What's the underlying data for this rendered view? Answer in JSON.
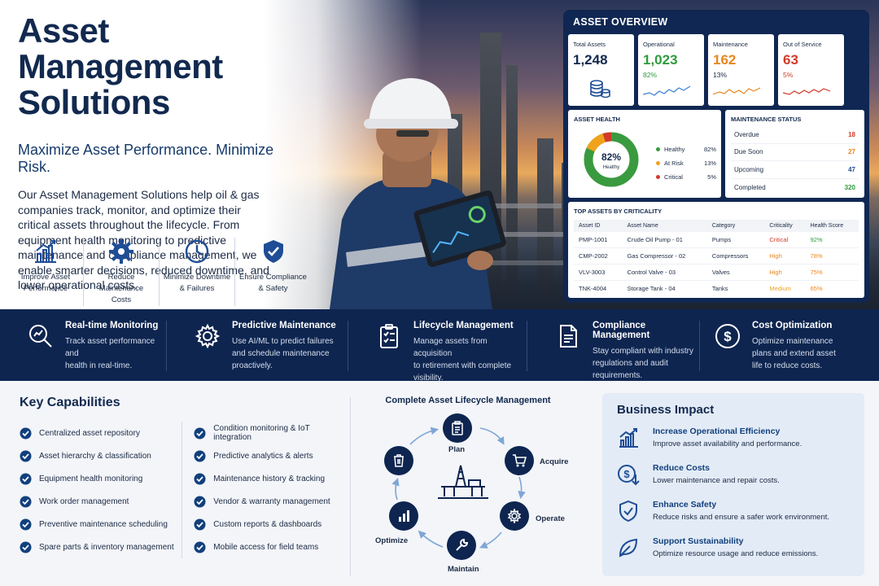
{
  "hero": {
    "title_line1": "Asset Management",
    "title_line2": "Solutions",
    "subtitle": "Maximize Asset Performance. Minimize Risk.",
    "description": "Our Asset Management Solutions help oil & gas companies track, monitor, and optimize their critical assets throughout the lifecycle. From equipment health monitoring to predictive maintenance and compliance management, we enable smarter decisions, reduced downtime, and lower operational costs.",
    "features": [
      {
        "icon": "chart-bar-icon",
        "line1": "Improve Asset",
        "line2": "Performance"
      },
      {
        "icon": "gear-icon",
        "line1": "Reduce Maintenance",
        "line2": "Costs"
      },
      {
        "icon": "clock-icon",
        "line1": "Minimize Downtime",
        "line2": "& Failures"
      },
      {
        "icon": "shield-check-icon",
        "line1": "Ensure Compliance",
        "line2": "& Safety"
      }
    ]
  },
  "dashboard": {
    "title": "ASSET OVERVIEW",
    "kpis": [
      {
        "label": "Total Assets",
        "value": "1,248",
        "pct": "",
        "color": "#12294f"
      },
      {
        "label": "Operational",
        "value": "1,023",
        "pct": "82%",
        "color": "#2e9b3c"
      },
      {
        "label": "Maintenance",
        "value": "162",
        "pct": "13%",
        "color": "#e8861e"
      },
      {
        "label": "Out of Service",
        "value": "63",
        "pct": "5%",
        "color": "#d23a2a"
      }
    ],
    "health": {
      "title": "ASSET HEALTH",
      "center_value": "82%",
      "center_label": "Healthy",
      "items": [
        {
          "name": "Healthy",
          "value": "82%",
          "color": "#3a9a3f"
        },
        {
          "name": "At Risk",
          "value": "13%",
          "color": "#f0a21d"
        },
        {
          "name": "Critical",
          "value": "5%",
          "color": "#d23a2a"
        }
      ]
    },
    "maintenance": {
      "title": "MAINTENANCE STATUS",
      "rows": [
        {
          "label": "Overdue",
          "value": "18",
          "color": "#d23a2a"
        },
        {
          "label": "Due Soon",
          "value": "27",
          "color": "#e8861e"
        },
        {
          "label": "Upcoming",
          "value": "47",
          "color": "#1f4d96"
        },
        {
          "label": "Completed",
          "value": "320",
          "color": "#2e9b3c"
        }
      ]
    },
    "top_assets": {
      "title": "TOP ASSETS BY CRITICALITY",
      "headers": [
        "Asset ID",
        "Asset Name",
        "Category",
        "Criticality",
        "Health Score"
      ],
      "rows": [
        [
          "PMP-1001",
          "Crude Oil Pump - 01",
          "Pumps",
          "Critical",
          "92%"
        ],
        [
          "CMP-2002",
          "Gas Compressor - 02",
          "Compressors",
          "High",
          "78%"
        ],
        [
          "VLV-3003",
          "Control Valve - 03",
          "Valves",
          "High",
          "75%"
        ],
        [
          "TNK-4004",
          "Storage Tank - 04",
          "Tanks",
          "Medium",
          "65%"
        ]
      ]
    }
  },
  "band": [
    {
      "icon": "magnifier-chart-icon",
      "title": "Real-time Monitoring",
      "line1": "Track asset performance and",
      "line2": "health in real-time.",
      "line3": ""
    },
    {
      "icon": "gear-icon",
      "title": "Predictive Maintenance",
      "line1": "Use AI/ML to predict failures",
      "line2": "and schedule maintenance",
      "line3": "proactively."
    },
    {
      "icon": "clipboard-checklist-icon",
      "title": "Lifecycle Management",
      "line1": "Manage assets from acquisition",
      "line2": "to retirement with complete",
      "line3": "visibility."
    },
    {
      "icon": "document-icon",
      "title": "Compliance Management",
      "line1": "Stay compliant with industry",
      "line2": "regulations and audit",
      "line3": "requirements."
    },
    {
      "icon": "dollar-circle-icon",
      "title": "Cost Optimization",
      "line1": "Optimize maintenance",
      "line2": "plans and extend asset",
      "line3": "life to reduce costs."
    }
  ],
  "capabilities": {
    "title": "Key Capabilities",
    "col1": [
      "Centralized asset repository",
      "Asset hierarchy & classification",
      "Equipment health monitoring",
      "Work order management",
      "Preventive maintenance scheduling",
      "Spare parts & inventory management"
    ],
    "col2": [
      "Condition monitoring & IoT integration",
      "Predictive analytics & alerts",
      "Maintenance history & tracking",
      "Vendor & warranty management",
      "Custom reports & dashboards",
      "Mobile access for field teams"
    ]
  },
  "lifecycle": {
    "title": "Complete Asset Lifecycle Management",
    "stages": [
      "Plan",
      "Acquire",
      "Operate",
      "Maintain",
      "Optimize",
      "Dispose"
    ]
  },
  "impact": {
    "title": "Business Impact",
    "items": [
      {
        "icon": "growth-chart-icon",
        "title": "Increase Operational Efficiency",
        "desc": "Improve asset availability and performance."
      },
      {
        "icon": "dollar-down-icon",
        "title": "Reduce Costs",
        "desc": "Lower maintenance and repair costs."
      },
      {
        "icon": "shield-check-icon",
        "title": "Enhance Safety",
        "desc": "Reduce risks and ensure a safer work environment."
      },
      {
        "icon": "leaf-icon",
        "title": "Support Sustainability",
        "desc": "Optimize resource usage and reduce emissions."
      }
    ]
  }
}
